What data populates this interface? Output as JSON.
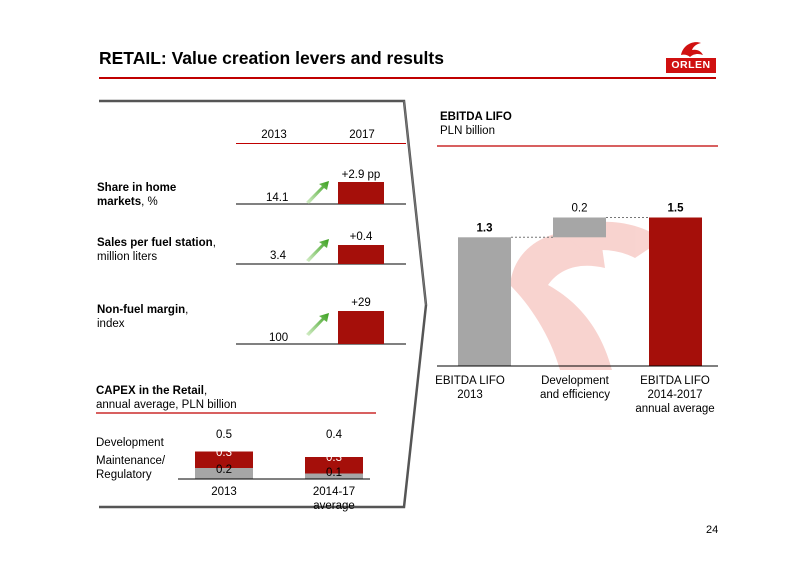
{
  "header": {
    "title": "RETAIL: Value creation levers and results",
    "logo_text": "ORLEN",
    "page_number": "24"
  },
  "colors": {
    "brand_red": "#a50f0a",
    "accent_red": "#d01010",
    "grey": "#a6a6a6",
    "green_arrow": "#4caf2a"
  },
  "levers": {
    "year_a": "2013",
    "year_b": "2017",
    "rows": [
      {
        "label_bold": "Share in home markets",
        "label_rest": ", %",
        "base": "14.1",
        "delta": "+2.9 pp"
      },
      {
        "label_bold": "Sales per fuel station",
        "label_rest": ",",
        "label_sub": "million liters",
        "base": "3.4",
        "delta": "+0.4"
      },
      {
        "label_bold": "Non-fuel margin",
        "label_rest": ",",
        "label_sub": "index",
        "base": "100",
        "delta": "+29"
      }
    ]
  },
  "capex": {
    "title_bold": "CAPEX in the Retail",
    "title_rest": ",",
    "subtitle": "annual average, PLN billion",
    "legend_development": "Development",
    "legend_maintenance_1": "Maintenance/",
    "legend_maintenance_2": "Regulatory",
    "bars": [
      {
        "label_1": "2013",
        "label_2": "",
        "total": "0.5",
        "development": "0.3",
        "maintenance": "0.2"
      },
      {
        "label_1": "2014-17",
        "label_2": "average",
        "total": "0.4",
        "development": "0.3",
        "maintenance": "0.1"
      }
    ]
  },
  "ebitda": {
    "title": "EBITDA LIFO",
    "unit": "PLN billion"
  },
  "chart_data": [
    {
      "type": "bar",
      "title": "EBITDA LIFO",
      "subtitle": "PLN billion",
      "categories": [
        [
          "EBITDA LIFO",
          "2013"
        ],
        [
          "Development",
          "and efficiency"
        ],
        [
          "EBITDA LIFO",
          "2014-2017",
          "annual average"
        ]
      ],
      "bars": [
        {
          "kind": "total",
          "value": 1.3,
          "label": "1.3",
          "color": "#a6a6a6"
        },
        {
          "kind": "delta",
          "value": 0.2,
          "label": "0.2",
          "color": "#a6a6a6"
        },
        {
          "kind": "total",
          "value": 1.5,
          "label": "1.5",
          "color": "#a50f0a"
        }
      ],
      "ylim": [
        0,
        1.5
      ]
    },
    {
      "type": "bar",
      "title": "CAPEX in the Retail",
      "categories": [
        "2013",
        "2014-17 average"
      ],
      "series": [
        {
          "name": "Maintenance/ Regulatory",
          "values": [
            0.2,
            0.1
          ]
        },
        {
          "name": "Development",
          "values": [
            0.3,
            0.3
          ]
        }
      ],
      "totals": [
        0.5,
        0.4
      ]
    }
  ]
}
